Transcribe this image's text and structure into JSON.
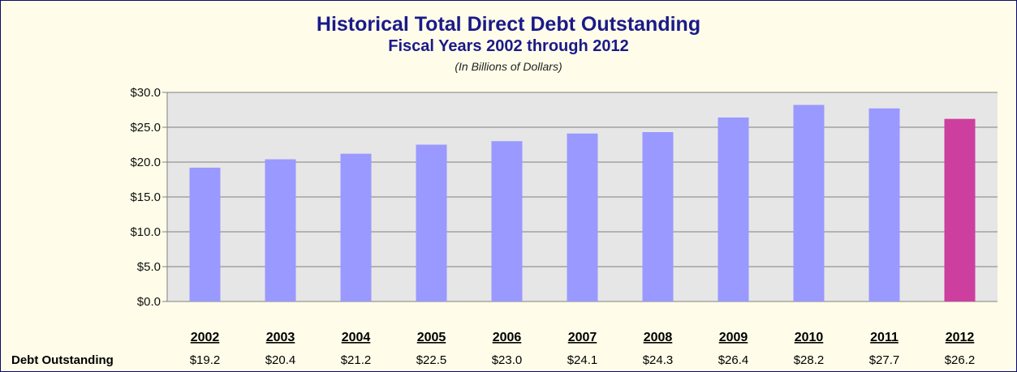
{
  "chart_data": {
    "type": "bar",
    "title": "Historical Total Direct Debt Outstanding",
    "subtitle": "Fiscal Years 2002 through 2012",
    "note": "(In Billions of Dollars)",
    "categories": [
      "2002",
      "2003",
      "2004",
      "2005",
      "2006",
      "2007",
      "2008",
      "2009",
      "2010",
      "2011",
      "2012"
    ],
    "values": [
      19.2,
      20.4,
      21.2,
      22.5,
      23.0,
      24.1,
      24.3,
      26.4,
      28.2,
      27.7,
      26.2
    ],
    "ylim": [
      0,
      30
    ],
    "yticks": [
      0,
      5,
      10,
      15,
      20,
      25,
      30
    ],
    "ytick_labels": [
      "$0.0",
      "$5.0",
      "$10.0",
      "$15.0",
      "$20.0",
      "$25.0",
      "$30.0"
    ],
    "grid": true,
    "table": {
      "row_label": "Debt Outstanding",
      "value_labels": [
        "$19.2",
        "$20.4",
        "$21.2",
        "$22.5",
        "$23.0",
        "$24.1",
        "$24.3",
        "$26.4",
        "$28.2",
        "$27.7",
        "$26.2"
      ]
    },
    "colors": {
      "bar": "#9999ff",
      "highlight_bar": "#cc3f9f",
      "plot_background": "#e6e6e6",
      "chart_background": "#fffde9",
      "title": "#1a1a8a"
    },
    "highlight_category": "2012"
  }
}
